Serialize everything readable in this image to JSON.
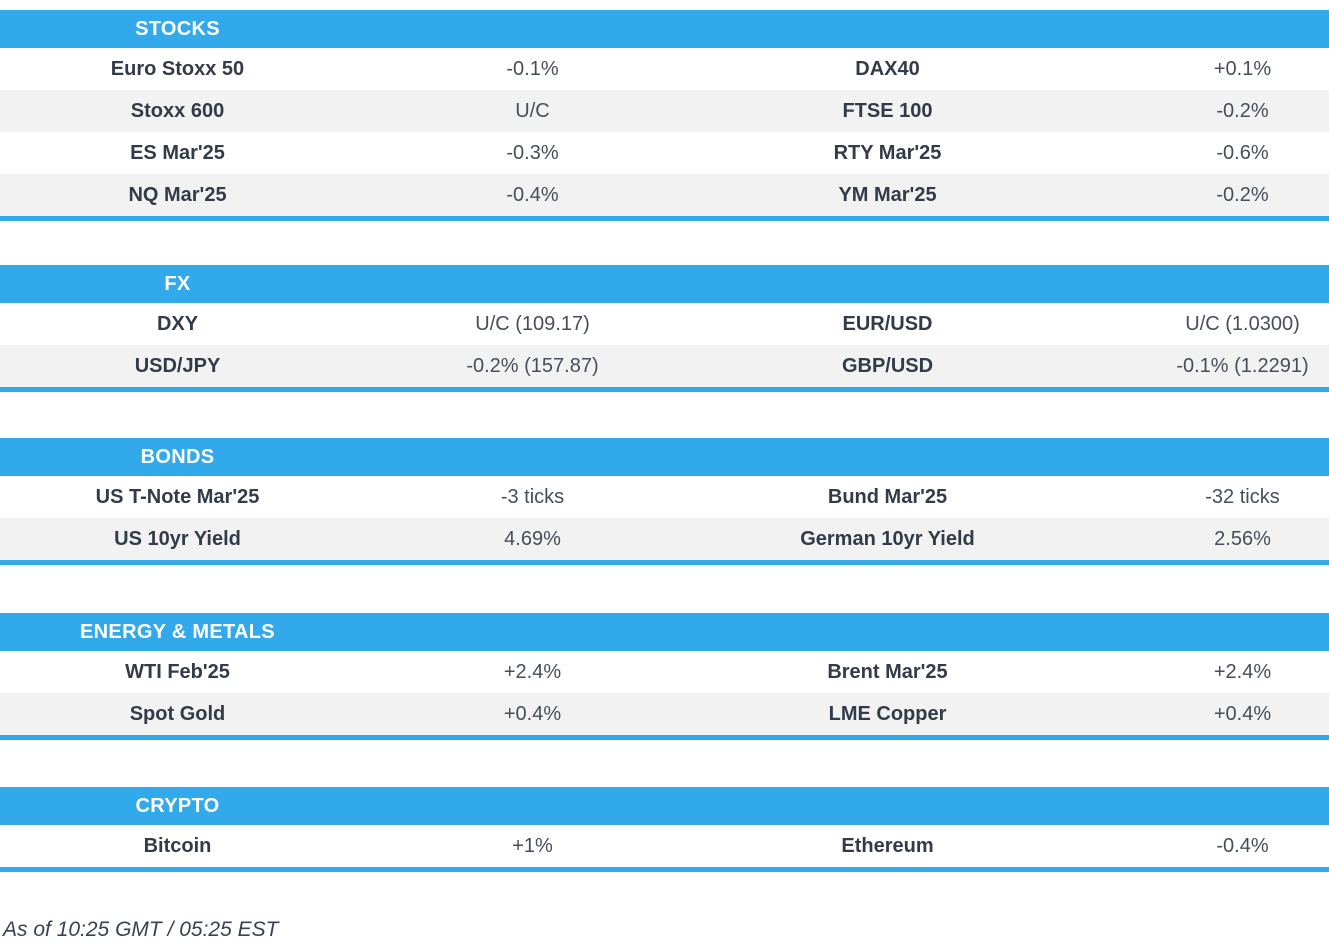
{
  "colors": {
    "accent_blue": "#31A9EB",
    "row_alt_gray": "#F2F2F2",
    "label_text": "#333B48",
    "value_text": "#474E59",
    "header_text": "#FFFFFF"
  },
  "sections": [
    {
      "title": "STOCKS",
      "rows": [
        {
          "left_label": "Euro Stoxx 50",
          "left_value": "-0.1%",
          "right_label": "DAX40",
          "right_value": "+0.1%"
        },
        {
          "left_label": "Stoxx 600",
          "left_value": "U/C",
          "right_label": "FTSE 100",
          "right_value": "-0.2%"
        },
        {
          "left_label": "ES Mar'25",
          "left_value": "-0.3%",
          "right_label": "RTY Mar'25",
          "right_value": "-0.6%"
        },
        {
          "left_label": "NQ Mar'25",
          "left_value": "-0.4%",
          "right_label": "YM Mar'25",
          "right_value": "-0.2%"
        }
      ]
    },
    {
      "title": "FX",
      "rows": [
        {
          "left_label": "DXY",
          "left_value": "U/C (109.17)",
          "right_label": "EUR/USD",
          "right_value": "U/C (1.0300)"
        },
        {
          "left_label": "USD/JPY",
          "left_value": "-0.2% (157.87)",
          "right_label": "GBP/USD",
          "right_value": "-0.1% (1.2291)"
        }
      ]
    },
    {
      "title": "BONDS",
      "rows": [
        {
          "left_label": "US T-Note Mar'25",
          "left_value": "-3 ticks",
          "right_label": "Bund Mar'25",
          "right_value": "-32 ticks"
        },
        {
          "left_label": "US 10yr Yield",
          "left_value": "4.69%",
          "right_label": "German 10yr Yield",
          "right_value": "2.56%"
        }
      ]
    },
    {
      "title": "ENERGY & METALS",
      "rows": [
        {
          "left_label": "WTI Feb'25",
          "left_value": "+2.4%",
          "right_label": "Brent Mar'25",
          "right_value": "+2.4%"
        },
        {
          "left_label": "Spot Gold",
          "left_value": "+0.4%",
          "right_label": "LME Copper",
          "right_value": "+0.4%"
        }
      ]
    },
    {
      "title": "CRYPTO",
      "rows": [
        {
          "left_label": "Bitcoin",
          "left_value": "+1%",
          "right_label": "Ethereum",
          "right_value": "-0.4%"
        }
      ]
    }
  ],
  "footer": {
    "timestamp_note": "As of 10:25 GMT / 05:25 EST"
  }
}
